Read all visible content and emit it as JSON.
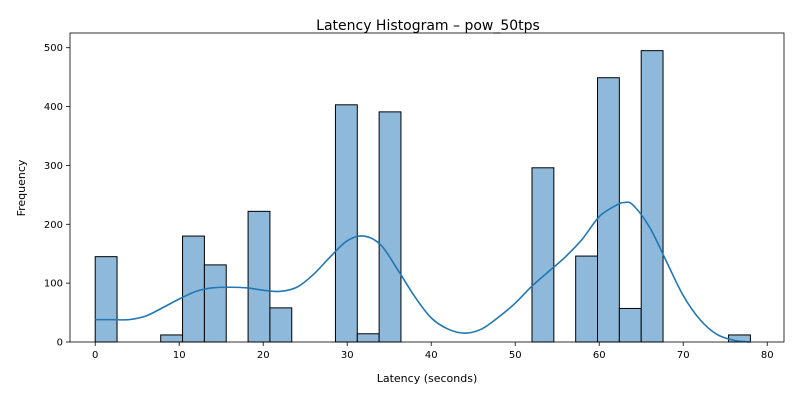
{
  "chart_data": {
    "type": "bar",
    "title": "Latency Histogram – pow_50tps",
    "xlabel": "Latency (seconds)",
    "ylabel": "Frequency",
    "xlim": [
      -3,
      82
    ],
    "ylim": [
      0,
      525
    ],
    "xticks": [
      0,
      10,
      20,
      30,
      40,
      50,
      60,
      70,
      80
    ],
    "yticks": [
      0,
      100,
      200,
      300,
      400,
      500
    ],
    "grid": false,
    "bins": [
      {
        "x0": 0.0,
        "x1": 2.6,
        "count": 145
      },
      {
        "x0": 7.8,
        "x1": 10.4,
        "count": 12
      },
      {
        "x0": 10.4,
        "x1": 13.0,
        "count": 180
      },
      {
        "x0": 13.0,
        "x1": 15.6,
        "count": 131
      },
      {
        "x0": 18.2,
        "x1": 20.8,
        "count": 222
      },
      {
        "x0": 20.8,
        "x1": 23.4,
        "count": 58
      },
      {
        "x0": 28.6,
        "x1": 31.2,
        "count": 403
      },
      {
        "x0": 31.2,
        "x1": 33.8,
        "count": 14
      },
      {
        "x0": 33.8,
        "x1": 36.4,
        "count": 391
      },
      {
        "x0": 52.0,
        "x1": 54.6,
        "count": 296
      },
      {
        "x0": 57.2,
        "x1": 59.8,
        "count": 146
      },
      {
        "x0": 59.8,
        "x1": 62.4,
        "count": 449
      },
      {
        "x0": 62.4,
        "x1": 65.0,
        "count": 57
      },
      {
        "x0": 65.0,
        "x1": 67.6,
        "count": 495
      },
      {
        "x0": 75.4,
        "x1": 78.0,
        "count": 12
      }
    ],
    "kde": {
      "x": [
        0,
        2,
        4,
        6,
        8,
        10,
        12,
        14,
        16,
        18,
        20,
        22,
        24,
        26,
        28,
        30,
        32,
        34,
        36,
        38,
        40,
        42,
        44,
        46,
        48,
        50,
        52,
        54,
        56,
        58,
        60,
        62,
        63,
        64,
        66,
        68,
        70,
        72,
        74,
        76,
        78
      ],
      "y": [
        38,
        38,
        38,
        44,
        58,
        73,
        86,
        92,
        93,
        92,
        88,
        86,
        93,
        115,
        145,
        172,
        180,
        165,
        123,
        78,
        41,
        22,
        15,
        22,
        42,
        66,
        95,
        120,
        145,
        175,
        213,
        232,
        237,
        233,
        195,
        137,
        79,
        38,
        13,
        3,
        0
      ]
    }
  }
}
